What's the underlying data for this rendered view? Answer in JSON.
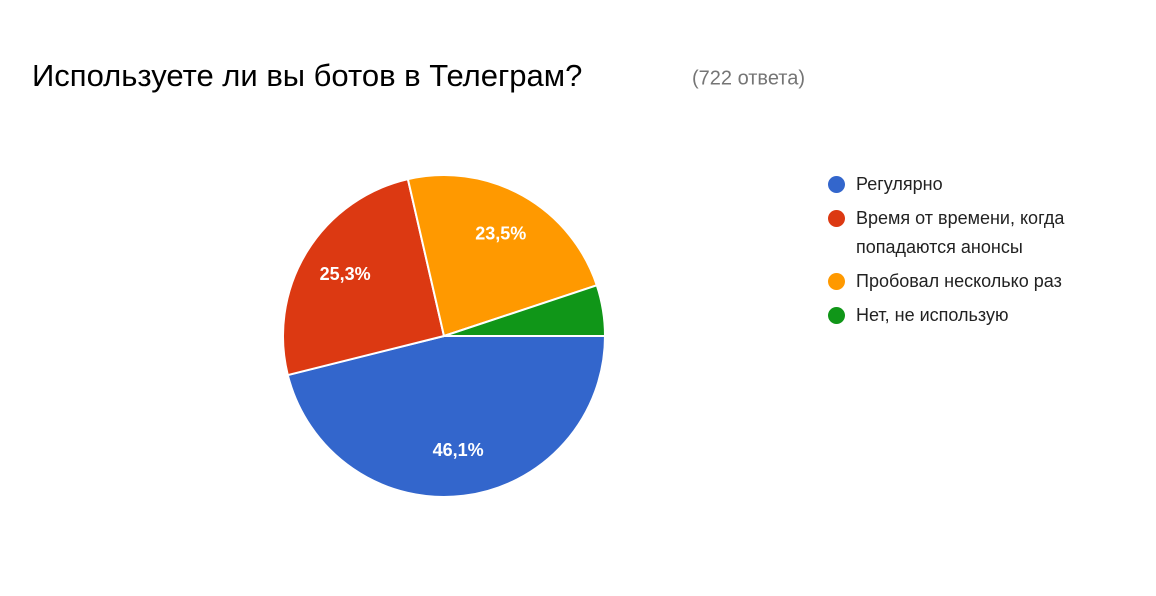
{
  "chart_data": {
    "type": "pie",
    "title": "Используете ли вы ботов в Телеграм?",
    "subtitle": "(722 ответа)",
    "categories": [
      "Регулярно",
      "Время от времени, когда попадаются анонсы",
      "Пробовал несколько раз",
      "Нет, не использую"
    ],
    "values": [
      46.1,
      25.3,
      23.5,
      5.1
    ],
    "value_labels": [
      "46,1%",
      "25,3%",
      "23,5%",
      null
    ],
    "colors": [
      "#3366cc",
      "#dc3912",
      "#ff9900",
      "#109618"
    ],
    "legend": "right"
  }
}
